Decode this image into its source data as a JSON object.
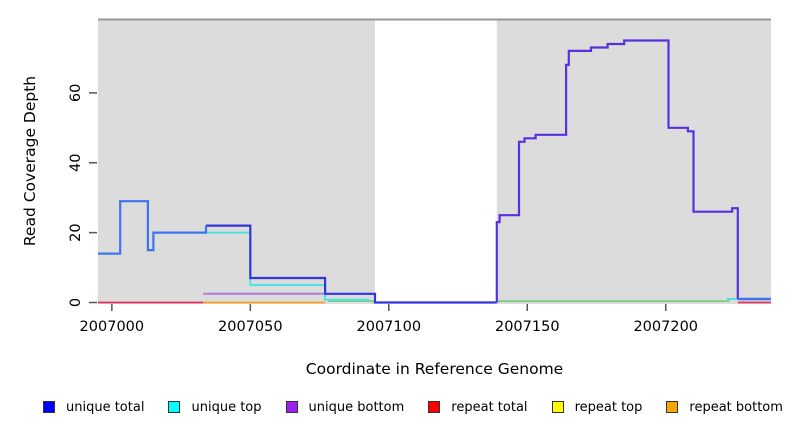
{
  "figure": {
    "y_axis_label": "Read Coverage Depth",
    "x_axis_label": "Coordinate in Reference Genome"
  },
  "chart_data": {
    "type": "line",
    "subtype": "step-coverage",
    "title": "",
    "xlabel": "Coordinate in Reference Genome",
    "ylabel": "Read Coverage Depth",
    "xlim": [
      2006995,
      2007238
    ],
    "ylim": [
      0,
      81
    ],
    "x_ticks": [
      2007000,
      2007050,
      2007100,
      2007150,
      2007200
    ],
    "y_ticks": [
      0,
      20,
      40,
      60
    ],
    "grid": false,
    "legend_position": "bottom",
    "background": {
      "covered_color": "#dcdcdc",
      "gap_color": "#ffffff",
      "covered_regions": [
        [
          2006995,
          2007095
        ],
        [
          2007139,
          2007238
        ]
      ],
      "top_border_color": "#979797"
    },
    "legend": [
      {
        "label": "unique total",
        "color": "#0000ff"
      },
      {
        "label": "unique top",
        "color": "#00ffff"
      },
      {
        "label": "unique bottom",
        "color": "#a020f0"
      },
      {
        "label": "repeat total",
        "color": "#ff0000"
      },
      {
        "label": "repeat top",
        "color": "#ffff00"
      },
      {
        "label": "repeat bottom",
        "color": "#ffa500"
      }
    ],
    "series": [
      {
        "name": "zero-line-green-left",
        "color": "#76ce7e",
        "width": 1.7,
        "points": [
          [
            2007078,
            0.4
          ],
          [
            2007095,
            0.4
          ]
        ]
      },
      {
        "name": "zero-line-green-right",
        "color": "#76ce7e",
        "width": 1.7,
        "points": [
          [
            2007139,
            0.4
          ],
          [
            2007223,
            0.4
          ]
        ]
      },
      {
        "name": "repeat-total-zero-left",
        "color": "#e0335c",
        "width": 1.7,
        "points": [
          [
            2006995,
            0
          ],
          [
            2007033,
            0
          ]
        ]
      },
      {
        "name": "repeat-total-zero-right",
        "color": "#e0335c",
        "width": 1.7,
        "points": [
          [
            2007226,
            0
          ],
          [
            2007238,
            0
          ]
        ]
      },
      {
        "name": "repeat-bottom-zero",
        "color": "#ff9d1e",
        "width": 1.7,
        "points": [
          [
            2007033,
            0
          ],
          [
            2007077,
            0
          ]
        ]
      },
      {
        "name": "unique-bottom-left",
        "color": "#b478d8",
        "width": 2,
        "points": [
          [
            2007033,
            2.5
          ],
          [
            2007077,
            2.5
          ]
        ]
      },
      {
        "name": "unique-top-left",
        "color": "#52e0e0",
        "width": 2,
        "points": [
          [
            2007034,
            20
          ],
          [
            2007050,
            20
          ],
          [
            2007050,
            5
          ],
          [
            2007077,
            5
          ],
          [
            2007077,
            0.8
          ],
          [
            2007093,
            0.8
          ]
        ]
      },
      {
        "name": "unique-top-right-tiny",
        "color": "#52e0e0",
        "width": 2,
        "points": [
          [
            2007222,
            1
          ],
          [
            2007226,
            1
          ]
        ]
      },
      {
        "name": "unique-total-mid",
        "color": "#3434dd",
        "width": 2.2,
        "points": [
          [
            2007034,
            22
          ],
          [
            2007050,
            22
          ],
          [
            2007050,
            7
          ],
          [
            2007077,
            7
          ],
          [
            2007077,
            2.5
          ],
          [
            2007095,
            2.5
          ],
          [
            2007095,
            0
          ],
          [
            2007139,
            0
          ]
        ]
      },
      {
        "name": "unique-total-left",
        "color": "#3d74ee",
        "width": 2.2,
        "points": [
          [
            2006995,
            14
          ],
          [
            2007003,
            14
          ],
          [
            2007003,
            29
          ],
          [
            2007013,
            29
          ],
          [
            2007013,
            15
          ],
          [
            2007015,
            15
          ],
          [
            2007015,
            20
          ],
          [
            2007034,
            20
          ],
          [
            2007034,
            22
          ]
        ]
      },
      {
        "name": "unique-bottom-right-peak",
        "color": "#5a2fe0",
        "width": 2.2,
        "points": [
          [
            2007139,
            0
          ],
          [
            2007139,
            23
          ],
          [
            2007140,
            23
          ],
          [
            2007140,
            25
          ],
          [
            2007147,
            25
          ],
          [
            2007147,
            46
          ],
          [
            2007149,
            46
          ],
          [
            2007149,
            47
          ],
          [
            2007153,
            47
          ],
          [
            2007153,
            48
          ],
          [
            2007164,
            48
          ],
          [
            2007164,
            68
          ],
          [
            2007165,
            68
          ],
          [
            2007165,
            72
          ],
          [
            2007173,
            72
          ],
          [
            2007173,
            73
          ],
          [
            2007179,
            73
          ],
          [
            2007179,
            74
          ],
          [
            2007185,
            74
          ],
          [
            2007185,
            75
          ],
          [
            2007201,
            75
          ],
          [
            2007201,
            50
          ],
          [
            2007208,
            50
          ],
          [
            2007208,
            49
          ],
          [
            2007210,
            49
          ],
          [
            2007210,
            26
          ],
          [
            2007224,
            26
          ],
          [
            2007224,
            27
          ],
          [
            2007226,
            27
          ],
          [
            2007226,
            1
          ]
        ]
      },
      {
        "name": "unique-total-right-end",
        "color": "#3d74ee",
        "width": 2.5,
        "points": [
          [
            2007226,
            1
          ],
          [
            2007238,
            1
          ]
        ]
      }
    ]
  }
}
